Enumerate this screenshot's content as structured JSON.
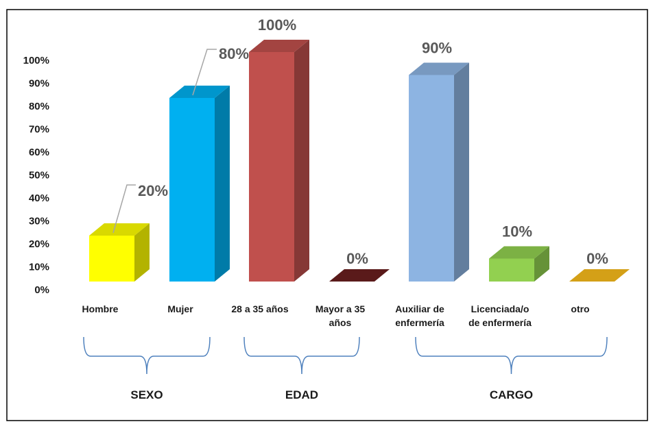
{
  "chart_data": {
    "type": "bar",
    "title": "",
    "xlabel": "",
    "ylabel": "",
    "ylim": [
      0,
      100
    ],
    "y_ticks": [
      "0%",
      "10%",
      "20%",
      "30%",
      "40%",
      "50%",
      "60%",
      "70%",
      "80%",
      "90%",
      "100%"
    ],
    "categories": [
      [
        "Hombre"
      ],
      [
        "Mujer"
      ],
      [
        "28 a 35 años"
      ],
      [
        "Mayor a 35",
        "años"
      ],
      [
        "Auxiliar de",
        "enfermería"
      ],
      [
        "Licenciada/o",
        "de enfermería"
      ],
      [
        "otro"
      ]
    ],
    "values": [
      20,
      80,
      100,
      0,
      90,
      10,
      0
    ],
    "data_labels": [
      "20%",
      "80%",
      "100%",
      "0%",
      "90%",
      "10%",
      "0%"
    ],
    "bar_colors": [
      "#ffff00",
      "#00b0f0",
      "#c0504d",
      "#5a1a1a",
      "#8db4e2",
      "#92d050",
      "#d4a017"
    ],
    "groups": [
      {
        "label": "SEXO",
        "start": 0,
        "end": 1
      },
      {
        "label": "EDAD",
        "start": 2,
        "end": 3
      },
      {
        "label": "CARGO",
        "start": 4,
        "end": 6
      }
    ],
    "bracket_color": "#4f81bd",
    "grid": false,
    "legend": "none",
    "style": "3d-column"
  }
}
